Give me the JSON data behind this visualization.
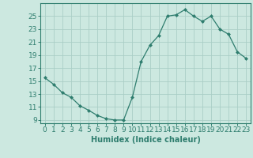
{
  "x": [
    0,
    1,
    2,
    3,
    4,
    5,
    6,
    7,
    8,
    9,
    10,
    11,
    12,
    13,
    14,
    15,
    16,
    17,
    18,
    19,
    20,
    21,
    22,
    23
  ],
  "y": [
    15.5,
    14.5,
    13.2,
    12.5,
    11.2,
    10.5,
    9.7,
    9.2,
    9.0,
    9.0,
    12.5,
    18.0,
    20.5,
    22.0,
    25.0,
    25.2,
    26.0,
    25.0,
    24.2,
    25.0,
    23.0,
    22.2,
    19.5,
    18.5
  ],
  "xlabel": "Humidex (Indice chaleur)",
  "line_color": "#2e7d6e",
  "marker": "D",
  "marker_size": 2,
  "bg_color": "#cce8e0",
  "grid_color": "#aacec6",
  "tick_color": "#2e7d6e",
  "spine_color": "#2e7d6e",
  "xlabel_color": "#2e7d6e",
  "ylim": [
    8.5,
    27
  ],
  "xlim": [
    -0.5,
    23.5
  ],
  "yticks": [
    9,
    11,
    13,
    15,
    17,
    19,
    21,
    23,
    25
  ],
  "xticks": [
    0,
    1,
    2,
    3,
    4,
    5,
    6,
    7,
    8,
    9,
    10,
    11,
    12,
    13,
    14,
    15,
    16,
    17,
    18,
    19,
    20,
    21,
    22,
    23
  ],
  "tick_fontsize": 6.5,
  "xlabel_fontsize": 7
}
